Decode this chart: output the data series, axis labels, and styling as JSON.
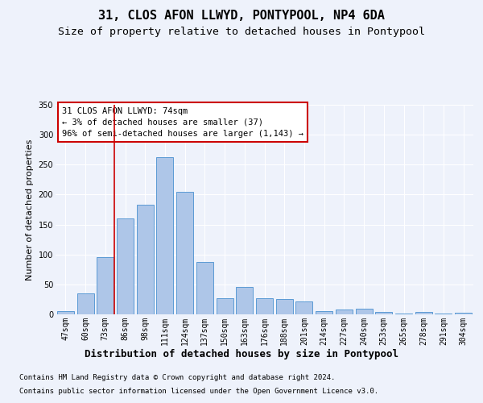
{
  "title": "31, CLOS AFON LLWYD, PONTYPOOL, NP4 6DA",
  "subtitle": "Size of property relative to detached houses in Pontypool",
  "xlabel": "Distribution of detached houses by size in Pontypool",
  "ylabel": "Number of detached properties",
  "categories": [
    "47sqm",
    "60sqm",
    "73sqm",
    "86sqm",
    "98sqm",
    "111sqm",
    "124sqm",
    "137sqm",
    "150sqm",
    "163sqm",
    "176sqm",
    "188sqm",
    "201sqm",
    "214sqm",
    "227sqm",
    "240sqm",
    "253sqm",
    "265sqm",
    "278sqm",
    "291sqm",
    "304sqm"
  ],
  "values": [
    5,
    35,
    95,
    160,
    183,
    262,
    205,
    88,
    27,
    46,
    27,
    26,
    21,
    5,
    8,
    9,
    4,
    2,
    4,
    2,
    3
  ],
  "bar_color": "#aec6e8",
  "bar_edge_color": "#5b9bd5",
  "ylim": [
    0,
    350
  ],
  "yticks": [
    0,
    50,
    100,
    150,
    200,
    250,
    300,
    350
  ],
  "vline_x": 2.45,
  "vline_color": "#cc0000",
  "annotation_text": "31 CLOS AFON LLWYD: 74sqm\n← 3% of detached houses are smaller (37)\n96% of semi-detached houses are larger (1,143) →",
  "footer_line1": "Contains HM Land Registry data © Crown copyright and database right 2024.",
  "footer_line2": "Contains public sector information licensed under the Open Government Licence v3.0.",
  "bg_color": "#eef2fb",
  "plot_bg_color": "#eef2fb",
  "title_fontsize": 11,
  "subtitle_fontsize": 9.5,
  "ylabel_fontsize": 8,
  "xlabel_fontsize": 9,
  "tick_fontsize": 7,
  "footer_fontsize": 6.5,
  "annotation_fontsize": 7.5
}
